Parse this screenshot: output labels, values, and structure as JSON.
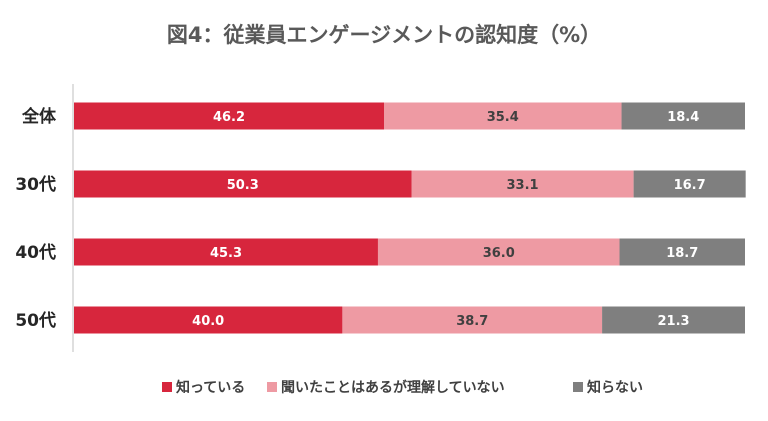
{
  "chart_data": {
    "type": "bar",
    "orientation": "horizontal",
    "stacked": true,
    "title": "図4：従業員エンゲージメントの認知度（%）",
    "categories": [
      "全体",
      "30代",
      "40代",
      "50代"
    ],
    "series": [
      {
        "name": "知っている",
        "color": "#d7263d",
        "label_color": "#ffffff",
        "values": [
          46.2,
          50.3,
          45.3,
          40.0
        ]
      },
      {
        "name": "聞いたことはあるが理解していない",
        "color": "#ee9aa3",
        "label_color": "#404040",
        "values": [
          35.4,
          33.1,
          36.0,
          38.7
        ]
      },
      {
        "name": "知らない",
        "color": "#7f7f7f",
        "label_color": "#ffffff",
        "values": [
          18.4,
          16.7,
          18.7,
          21.3
        ]
      }
    ],
    "xlim": [
      0,
      100
    ],
    "grid": false,
    "legend_position": "bottom"
  }
}
